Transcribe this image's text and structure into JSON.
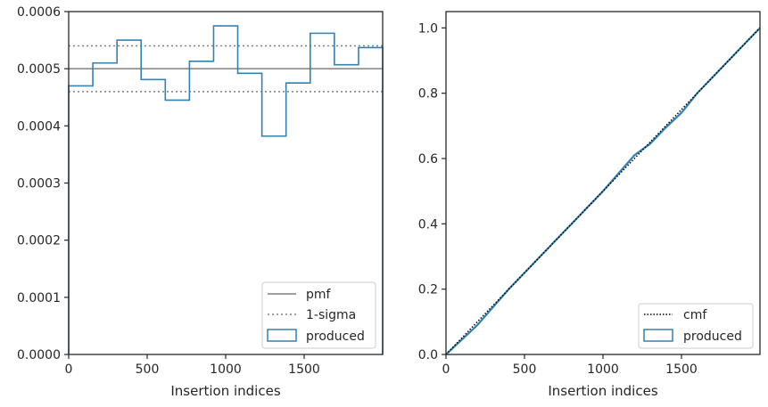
{
  "colors": {
    "produced": "#3182b1",
    "pmf": "#808080",
    "sigma": "#808080",
    "cmf": "#000000",
    "axes": "#262626",
    "legend_border": "#cccccc"
  },
  "chart_data": [
    {
      "type": "histogram",
      "xlabel": "Insertion indices",
      "ylabel": "",
      "xlim": [
        0,
        2000
      ],
      "ylim": [
        0,
        0.0006
      ],
      "xticks": [
        0,
        500,
        1000,
        1500
      ],
      "xtick_labels": [
        "0",
        "500",
        "1000",
        "1500"
      ],
      "yticks": [
        0,
        0.0001,
        0.0002,
        0.0003,
        0.0004,
        0.0005,
        0.0006
      ],
      "ytick_labels": [
        "0.0000",
        "0.0001",
        "0.0002",
        "0.0003",
        "0.0004",
        "0.0005",
        "0.0006"
      ],
      "grid": false,
      "legend_position": "lower-right",
      "legend": [
        "pmf",
        "1-sigma",
        "produced"
      ],
      "pmf": 0.0005,
      "sigma_band": [
        0.00046,
        0.00054
      ],
      "bin_edges": [
        0,
        153.8,
        307.7,
        461.5,
        615.4,
        769.2,
        923.1,
        1076.9,
        1230.8,
        1384.6,
        1538.5,
        1692.3,
        1846.2,
        2000
      ],
      "values": [
        0.00047,
        0.00051,
        0.00055,
        0.000481,
        0.000445,
        0.000513,
        0.000575,
        0.000492,
        0.000382,
        0.000475,
        0.000562,
        0.000507,
        0.000537
      ]
    },
    {
      "type": "line",
      "xlabel": "Insertion indices",
      "ylabel": "",
      "xlim": [
        0,
        2000
      ],
      "ylim": [
        0,
        1.05
      ],
      "xticks": [
        0,
        500,
        1000,
        1500
      ],
      "xtick_labels": [
        "0",
        "500",
        "1000",
        "1500"
      ],
      "yticks": [
        0,
        0.2,
        0.4,
        0.6,
        0.8,
        1.0
      ],
      "ytick_labels": [
        "0.0",
        "0.2",
        "0.4",
        "0.6",
        "0.8",
        "1.0"
      ],
      "grid": false,
      "legend_position": "lower-right",
      "legend": [
        "cmf",
        "produced"
      ],
      "cmf": {
        "x": [
          0,
          2000
        ],
        "y": [
          0,
          1.0
        ]
      },
      "produced": {
        "x": [
          0,
          100,
          200,
          300,
          400,
          500,
          600,
          700,
          800,
          900,
          1000,
          1100,
          1200,
          1300,
          1400,
          1500,
          1600,
          1700,
          1800,
          1900,
          2000
        ],
        "y": [
          0,
          0.045,
          0.09,
          0.145,
          0.2,
          0.25,
          0.3,
          0.35,
          0.4,
          0.45,
          0.5,
          0.555,
          0.61,
          0.645,
          0.695,
          0.74,
          0.8,
          0.85,
          0.9,
          0.95,
          1.0
        ]
      }
    }
  ]
}
